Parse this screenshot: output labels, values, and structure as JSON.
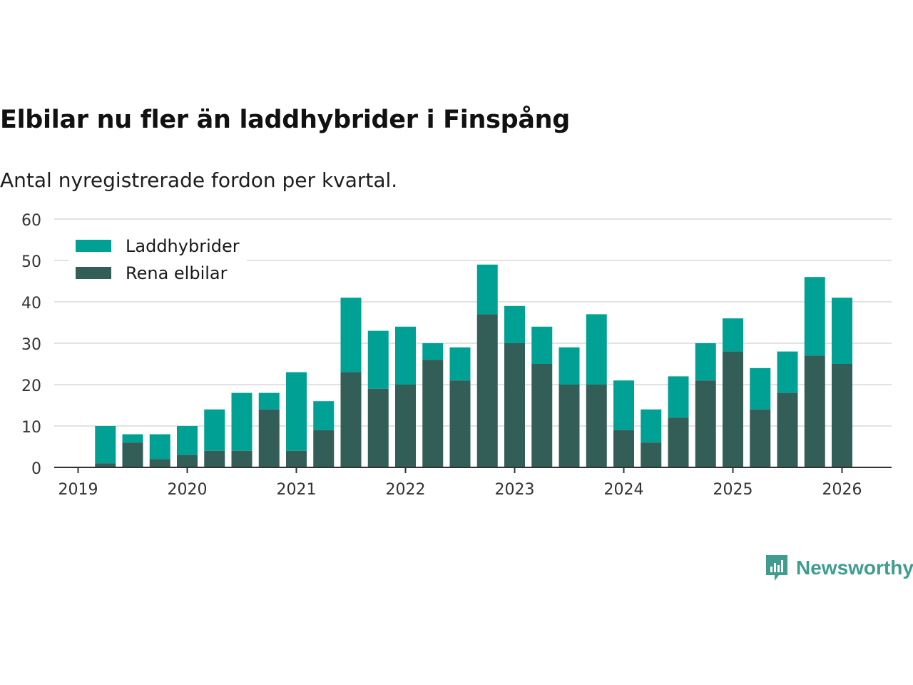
{
  "title": "Elbilar nu fler än laddhybrider i Finspång",
  "subtitle": "Antal nyregistrerade fordon per kvartal.",
  "brand": "Newsworthy",
  "colors": {
    "laddhybrider": "#00a195",
    "elbilar": "#325e57",
    "grid": "#d9d9d9",
    "axis": "#333333"
  },
  "chart_data": {
    "type": "bar",
    "stacked": true,
    "ylim": [
      0,
      60
    ],
    "yticks": [
      0,
      10,
      20,
      30,
      40,
      50,
      60
    ],
    "xticks": [
      "2019",
      "2020",
      "2021",
      "2022",
      "2023",
      "2024",
      "2025",
      "2026"
    ],
    "categories": [
      "2019 Q2",
      "2019 Q3",
      "2019 Q4",
      "2020 Q1",
      "2020 Q2",
      "2020 Q3",
      "2020 Q4",
      "2021 Q1",
      "2021 Q2",
      "2021 Q3",
      "2021 Q4",
      "2022 Q1",
      "2022 Q2",
      "2022 Q3",
      "2022 Q4",
      "2023 Q1",
      "2023 Q2",
      "2023 Q3",
      "2023 Q4",
      "2024 Q1",
      "2024 Q2",
      "2024 Q3",
      "2024 Q4",
      "2025 Q1",
      "2025 Q2",
      "2025 Q3",
      "2025 Q4",
      "2026 Q1"
    ],
    "series": [
      {
        "name": "Rena elbilar",
        "values": [
          1,
          6,
          2,
          3,
          4,
          4,
          14,
          4,
          9,
          23,
          19,
          20,
          26,
          21,
          37,
          30,
          25,
          20,
          20,
          9,
          6,
          12,
          21,
          28,
          14,
          18,
          27,
          25
        ]
      },
      {
        "name": "Laddhybrider",
        "values": [
          9,
          2,
          6,
          7,
          10,
          14,
          4,
          19,
          7,
          18,
          14,
          14,
          4,
          8,
          12,
          9,
          9,
          9,
          17,
          12,
          8,
          10,
          9,
          8,
          10,
          10,
          19,
          16
        ]
      }
    ],
    "legend": [
      "Laddhybrider",
      "Rena elbilar"
    ],
    "legend_position": "top-left"
  }
}
